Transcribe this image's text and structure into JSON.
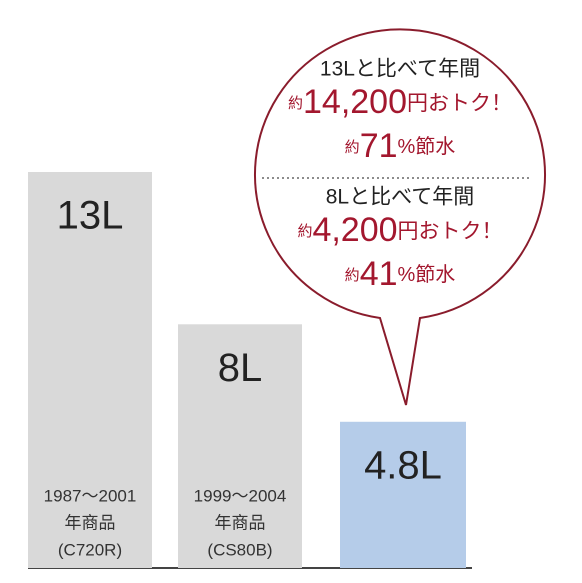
{
  "chart_data": {
    "type": "bar",
    "categories": [
      [
        "1987〜2001",
        "年商品",
        "(C720R)"
      ],
      [
        "1999〜2004",
        "年商品",
        "(CS80B)"
      ],
      null
    ],
    "values": [
      13,
      8,
      4.8
    ],
    "value_labels": [
      "13L",
      "8L",
      "4.8L"
    ],
    "colors": [
      "#d9d9d9",
      "#d9d9d9",
      "#b5cce9"
    ],
    "ylim": [
      0,
      13
    ],
    "annotations": [
      {
        "heading": "13Lと比べて年間",
        "saving": {
          "prefix": "約",
          "amount": "14,200",
          "suffix": "円おトク！"
        },
        "water": {
          "prefix": "約",
          "amount": "71",
          "suffix": "%節水"
        }
      },
      {
        "heading": "8Lと比べて年間",
        "saving": {
          "prefix": "約",
          "amount": "4,200",
          "suffix": "円おトク！"
        },
        "water": {
          "prefix": "約",
          "amount": "41",
          "suffix": "%節水"
        }
      }
    ]
  }
}
